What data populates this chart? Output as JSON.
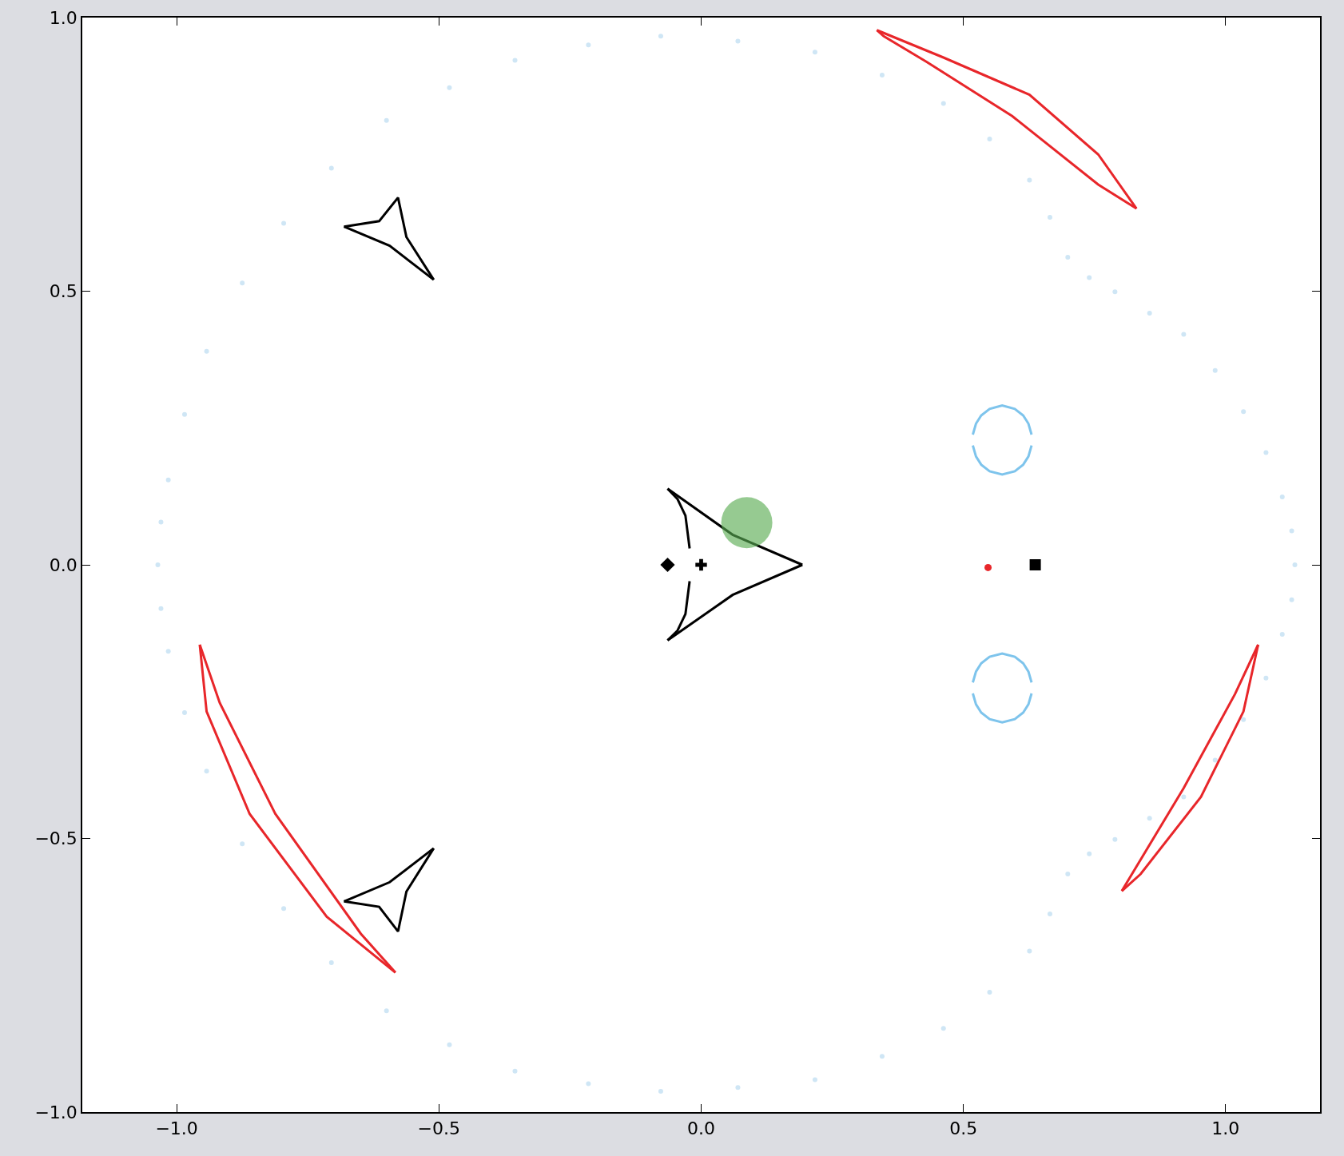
{
  "chart_data": {
    "type": "line",
    "xlim": [
      -1.18,
      1.18
    ],
    "ylim": [
      -1,
      1
    ],
    "xticks": [
      {
        "value": -1,
        "label": "−1.0"
      },
      {
        "value": -0.5,
        "label": "−0.5"
      },
      {
        "value": 0,
        "label": "0.0"
      },
      {
        "value": 0.5,
        "label": "0.5"
      },
      {
        "value": 1,
        "label": "1.0"
      }
    ],
    "yticks": [
      {
        "value": -1,
        "label": "−1.0"
      },
      {
        "value": -0.5,
        "label": "−0.5"
      },
      {
        "value": 0,
        "label": "0.0"
      },
      {
        "value": 0.5,
        "label": "0.5"
      },
      {
        "value": 1,
        "label": "1.0"
      }
    ],
    "grid": false,
    "legend": false,
    "series": [
      {
        "type": "scatter",
        "marker": "circle",
        "color": "#cfe6f5",
        "x": [
          -1.036,
          -1.016,
          -0.943,
          -0.796,
          -0.6,
          -0.355,
          -0.077,
          0.217,
          0.462,
          0.626,
          0.699,
          0.789,
          0.92,
          1.034,
          1.108,
          1.132,
          -1.016,
          -0.943,
          -0.796,
          -0.6,
          -0.355,
          -0.077,
          0.217,
          0.462,
          0.626,
          0.699,
          0.789,
          0.92,
          1.034,
          1.108,
          -1.03,
          -0.985,
          -0.875,
          -0.705,
          -0.48,
          -0.215,
          0.07,
          0.345,
          0.55,
          0.665,
          0.74,
          0.855,
          0.98,
          1.077,
          1.126,
          -1.03,
          -0.985,
          -0.875,
          -0.705,
          -0.48,
          -0.215,
          0.07,
          0.345,
          0.55,
          0.665,
          0.74,
          0.855,
          0.98,
          1.077,
          1.126
        ],
        "values": [
          0,
          0.155,
          0.39,
          0.624,
          0.812,
          0.922,
          0.966,
          0.937,
          0.843,
          0.703,
          0.562,
          0.499,
          0.421,
          0.28,
          0.124,
          0,
          -0.158,
          -0.377,
          -0.628,
          -0.815,
          -0.925,
          -0.962,
          -0.941,
          -0.847,
          -0.706,
          -0.565,
          -0.502,
          -0.424,
          -0.283,
          -0.127,
          0.078,
          0.275,
          0.515,
          0.725,
          0.872,
          0.95,
          0.957,
          0.895,
          0.778,
          0.635,
          0.525,
          0.46,
          0.355,
          0.205,
          0.062,
          -0.08,
          -0.27,
          -0.51,
          -0.727,
          -0.877,
          -0.948,
          -0.955,
          -0.898,
          -0.781,
          -0.638,
          -0.528,
          -0.463,
          -0.357,
          -0.207,
          -0.064
        ]
      },
      {
        "color": "#e8262a",
        "x": [
          0.335,
          0.462,
          0.626,
          0.757,
          0.83
        ],
        "values": [
          0.977,
          0.927,
          0.859,
          0.75,
          0.651
        ]
      },
      {
        "color": "#e8262a",
        "x": [
          0.335,
          0.348,
          0.43,
          0.593,
          0.757,
          0.83
        ],
        "values": [
          0.977,
          0.966,
          0.919,
          0.82,
          0.695,
          0.651
        ]
      },
      {
        "color": "#e8262a",
        "x": [
          -0.956,
          -0.943,
          -0.861,
          -0.714,
          -0.583
        ],
        "values": [
          -0.146,
          -0.268,
          -0.455,
          -0.643,
          -0.745
        ]
      },
      {
        "color": "#e8262a",
        "x": [
          -0.956,
          -0.918,
          -0.812,
          -0.649,
          -0.583
        ],
        "values": [
          -0.146,
          -0.252,
          -0.455,
          -0.674,
          -0.745
        ]
      },
      {
        "color": "#e8262a",
        "x": [
          0.802,
          0.838,
          0.953,
          1.034,
          1.062
        ],
        "values": [
          -0.596,
          -0.565,
          -0.424,
          -0.268,
          -0.146
        ]
      },
      {
        "color": "#e8262a",
        "x": [
          0.802,
          0.92,
          1.018,
          1.062
        ],
        "values": [
          -0.596,
          -0.408,
          -0.236,
          -0.146
        ]
      },
      {
        "color": "#7ec4ec",
        "x": [
          0.518,
          0.524,
          0.534,
          0.55,
          0.574,
          0.598,
          0.614,
          0.624,
          0.63
        ],
        "values": [
          0.238,
          0.258,
          0.273,
          0.285,
          0.291,
          0.285,
          0.273,
          0.258,
          0.238
        ]
      },
      {
        "color": "#7ec4ec",
        "x": [
          0.518,
          0.524,
          0.534,
          0.55,
          0.574,
          0.598,
          0.614,
          0.624,
          0.63
        ],
        "values": [
          0.218,
          0.198,
          0.183,
          0.171,
          0.165,
          0.171,
          0.183,
          0.198,
          0.218
        ]
      },
      {
        "color": "#7ec4ec",
        "x": [
          0.518,
          0.524,
          0.534,
          0.55,
          0.574,
          0.598,
          0.614,
          0.624,
          0.63
        ],
        "values": [
          -0.215,
          -0.195,
          -0.18,
          -0.168,
          -0.162,
          -0.168,
          -0.18,
          -0.195,
          -0.215
        ]
      },
      {
        "color": "#7ec4ec",
        "x": [
          0.518,
          0.524,
          0.534,
          0.55,
          0.574,
          0.598,
          0.614,
          0.624,
          0.63
        ],
        "values": [
          -0.235,
          -0.255,
          -0.27,
          -0.282,
          -0.288,
          -0.282,
          -0.27,
          -0.255,
          -0.235
        ]
      },
      {
        "color": "#000000",
        "x": [
          -0.681,
          -0.614,
          -0.578,
          -0.562,
          -0.51
        ],
        "values": [
          0.618,
          0.628,
          0.671,
          0.599,
          0.521
        ]
      },
      {
        "color": "#000000",
        "x": [
          -0.681,
          -0.594,
          -0.51
        ],
        "values": [
          0.618,
          0.583,
          0.521
        ]
      },
      {
        "color": "#000000",
        "x": [
          -0.681,
          -0.614,
          -0.578,
          -0.562,
          -0.51
        ],
        "values": [
          -0.615,
          -0.625,
          -0.67,
          -0.597,
          -0.518
        ]
      },
      {
        "color": "#000000",
        "x": [
          -0.681,
          -0.594,
          -0.51
        ],
        "values": [
          -0.615,
          -0.58,
          -0.518
        ]
      },
      {
        "color": "#000000",
        "x": [
          -0.064,
          0.06,
          0.193
        ],
        "values": [
          0.139,
          0.055,
          0
        ]
      },
      {
        "color": "#000000",
        "x": [
          -0.064,
          0.06,
          0.193
        ],
        "values": [
          -0.138,
          -0.055,
          0
        ]
      },
      {
        "color": "#000000",
        "x": [
          -0.064,
          -0.045,
          -0.03,
          -0.022
        ],
        "values": [
          0.139,
          0.12,
          0.09,
          0.03
        ]
      },
      {
        "color": "#000000",
        "x": [
          -0.064,
          -0.045,
          -0.03,
          -0.022
        ],
        "values": [
          -0.138,
          -0.12,
          -0.09,
          -0.03
        ]
      },
      {
        "type": "scatter",
        "color": "#000000",
        "marker": "diamond",
        "x": [
          -0.064
        ],
        "values": [
          0
        ]
      },
      {
        "type": "scatter",
        "color": "#000000",
        "marker": "cross",
        "x": [
          0
        ],
        "values": [
          0
        ]
      },
      {
        "type": "bubble",
        "color": "#5aac52",
        "marker": "circle",
        "x": [
          0.087
        ],
        "values": [
          0.077
        ],
        "sizes": [
          1
        ]
      },
      {
        "type": "scatter",
        "color": "#e8262a",
        "marker": "circle",
        "x": [
          0.547
        ],
        "values": [
          -0.005
        ]
      },
      {
        "type": "scatter",
        "color": "#000000",
        "marker": "square",
        "x": [
          0.637
        ],
        "values": [
          0
        ]
      }
    ]
  }
}
